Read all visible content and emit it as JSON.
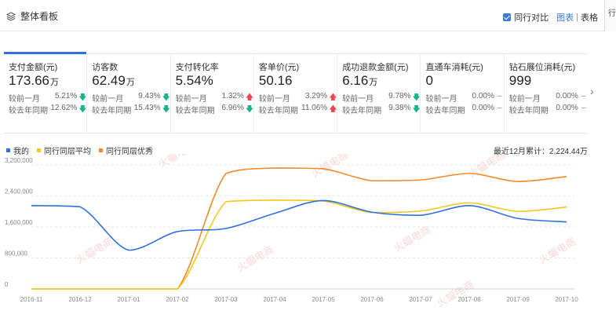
{
  "header": {
    "title": "整体看板",
    "peer_compare_label": "同行对比",
    "view_chart": "图表",
    "view_separator": "|",
    "view_table": "表格",
    "edge_tab": "行"
  },
  "metrics": [
    {
      "name": "支付金额(元)",
      "value": "173.66",
      "unit": "万",
      "mom_label": "较前一月",
      "mom": "5.21%",
      "mom_dir": "down",
      "yoy_label": "较去年同期",
      "yoy": "12.62%",
      "yoy_dir": "down"
    },
    {
      "name": "访客数",
      "value": "62.49",
      "unit": "万",
      "mom_label": "较前一月",
      "mom": "9.43%",
      "mom_dir": "down",
      "yoy_label": "较去年同期",
      "yoy": "15.43%",
      "yoy_dir": "down"
    },
    {
      "name": "支付转化率",
      "value": "5.54%",
      "unit": "",
      "mom_label": "较前一月",
      "mom": "1.32%",
      "mom_dir": "up",
      "yoy_label": "较去年同期",
      "yoy": "6.96%",
      "yoy_dir": "down"
    },
    {
      "name": "客单价(元)",
      "value": "50.16",
      "unit": "",
      "mom_label": "较前一月",
      "mom": "3.29%",
      "mom_dir": "up",
      "yoy_label": "较去年同期",
      "yoy": "11.06%",
      "yoy_dir": "up"
    },
    {
      "name": "成功退款金额(元)",
      "value": "6.16",
      "unit": "万",
      "mom_label": "较前一月",
      "mom": "9.78%",
      "mom_dir": "down",
      "yoy_label": "较去年同期",
      "yoy": "9.38%",
      "yoy_dir": "down"
    },
    {
      "name": "直通车消耗(元)",
      "value": "0",
      "unit": "",
      "mom_label": "较前一月",
      "mom": "0.00%",
      "mom_dir": "none",
      "yoy_label": "较去年同期",
      "yoy": "0.00%",
      "yoy_dir": "none"
    },
    {
      "name": "钻石展位消耗(元)",
      "value": "999",
      "unit": "",
      "mom_label": "较前一月",
      "mom": "0.00%",
      "mom_dir": "none",
      "yoy_label": "较去年同期",
      "yoy": "0.00%",
      "yoy_dir": "none"
    }
  ],
  "arrows": {
    "down": "🡇",
    "up": "🡅",
    "none": "–"
  },
  "next_glyph": "›",
  "total_label": "最近12月累计：2,224.44万",
  "watermark": "火蝠电商",
  "colors": {
    "mine": "#2f6fe0",
    "avg": "#f2c81f",
    "excellent": "#f28a2b"
  },
  "chart_data": {
    "type": "line",
    "categories": [
      "2016-11",
      "2016-12",
      "2017-01",
      "2017-02",
      "2017-03",
      "2017-04",
      "2017-05",
      "2017-06",
      "2017-07",
      "2017-08",
      "2017-09",
      "2017-10"
    ],
    "ytick_labels": [
      "0",
      "800,000",
      "1,600,000",
      "2,400,000",
      "3,200,000"
    ],
    "ylim": [
      0,
      3200000
    ],
    "grid": true,
    "legend_position": "top-left",
    "series": [
      {
        "name": "我的",
        "color": "#2f6fe0",
        "values": [
          2150000,
          2120000,
          1000000,
          1480000,
          1560000,
          1950000,
          2280000,
          1980000,
          1900000,
          2150000,
          1820000,
          1730000
        ]
      },
      {
        "name": "同行同层平均",
        "color": "#f2c81f",
        "values": [
          0,
          0,
          0,
          0,
          2250000,
          2290000,
          2270000,
          1970000,
          2010000,
          2220000,
          2000000,
          2110000
        ]
      },
      {
        "name": "同行同层优秀",
        "color": "#f28a2b",
        "values": [
          0,
          0,
          0,
          0,
          2980000,
          3120000,
          3100000,
          2790000,
          2810000,
          2980000,
          2770000,
          2900000
        ]
      }
    ]
  }
}
